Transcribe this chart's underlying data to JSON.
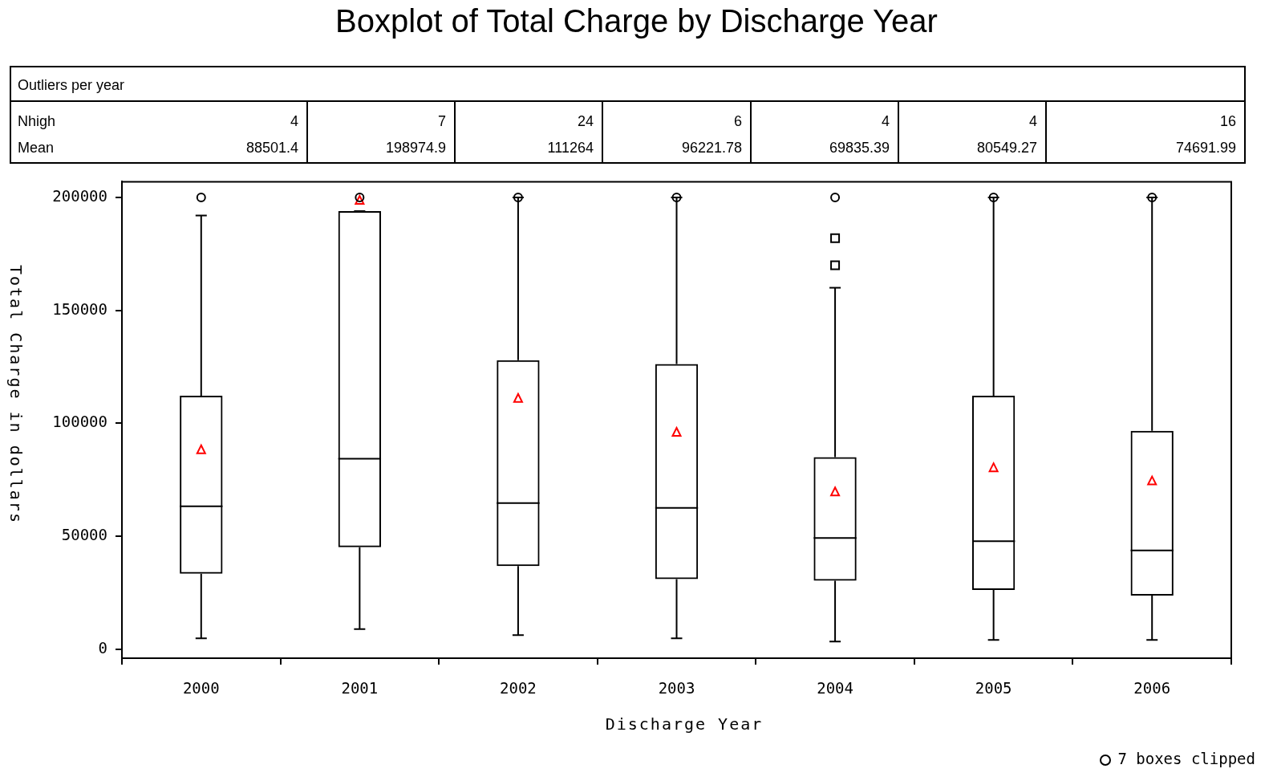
{
  "chart_data": {
    "type": "box",
    "title": "Boxplot of Total Charge by Discharge Year",
    "xlabel": "Discharge Year",
    "ylabel": "Total Charge in dollars",
    "categories": [
      "2000",
      "2001",
      "2002",
      "2003",
      "2004",
      "2005",
      "2006"
    ],
    "ylim": [
      -4000,
      207000
    ],
    "yticks": [
      0,
      50000,
      100000,
      150000,
      200000
    ],
    "grid": false,
    "legend": false,
    "series": [
      {
        "type": "box",
        "color": "#000000",
        "marker": "square",
        "boxes": [
          {
            "low": 4800,
            "q1": 33400,
            "median": 63300,
            "q3": 112200,
            "high": 192000,
            "mean": 88501.4
          },
          {
            "low": 8900,
            "q1": 45100,
            "median": 84300,
            "q3": 194000,
            "high": 194000,
            "mean": 198974.9
          },
          {
            "low": 6200,
            "q1": 36800,
            "median": 64700,
            "q3": 128000,
            "high": 200000,
            "mean": 111264
          },
          {
            "low": 4800,
            "q1": 31000,
            "median": 62600,
            "q3": 126300,
            "high": 200000,
            "mean": 96221.78
          },
          {
            "low": 3400,
            "q1": 30300,
            "median": 49200,
            "q3": 85000,
            "high": 160000,
            "mean": 69835.39,
            "outliers": [
              182000,
              170000
            ]
          },
          {
            "low": 4100,
            "q1": 26200,
            "median": 47800,
            "q3": 112200,
            "high": 200000,
            "mean": 80549.27
          },
          {
            "low": 4100,
            "q1": 23700,
            "median": 43700,
            "q3": 96700,
            "high": 200000,
            "mean": 74691.99
          }
        ]
      },
      {
        "type": "scatter",
        "color": "#000000",
        "marker": "circle",
        "values": [
          200000,
          200000,
          200000,
          200000,
          200000,
          200000,
          200000
        ]
      }
    ],
    "annotations": [
      "Outliers per year",
      "Nhigh",
      "4",
      "7",
      "24",
      "6",
      "4",
      "4",
      "16",
      "Mean",
      "88501.4",
      "198974.9",
      "111264",
      "96221.78",
      "69835.39",
      "80549.27",
      "74691.99",
      "7 boxes clipped"
    ]
  }
}
